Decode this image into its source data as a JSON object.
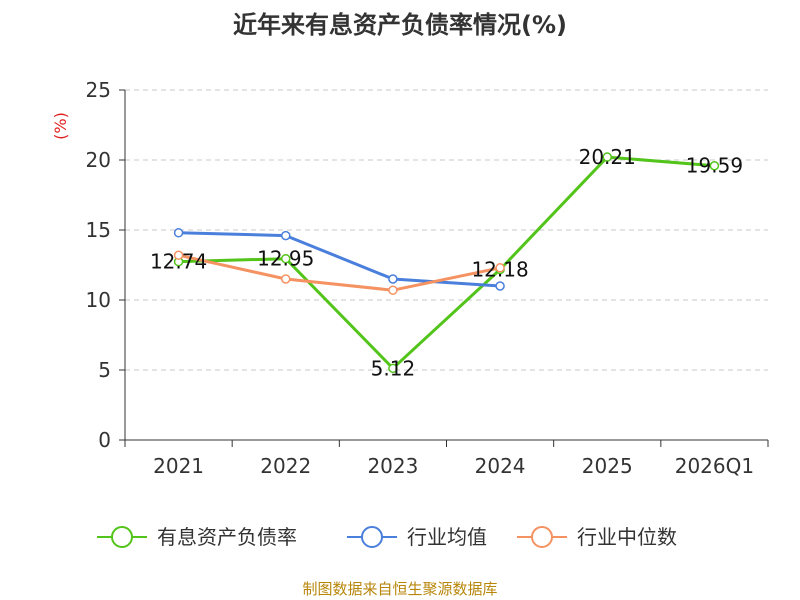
{
  "chart_data": {
    "type": "line",
    "title": "近年来有息资产负债率情况(%)",
    "ylabel": "(%)",
    "xlabel": "",
    "ylim": [
      0,
      25
    ],
    "yticks": [
      0,
      5,
      10,
      15,
      20,
      25
    ],
    "grid": true,
    "legend_position": "bottom",
    "categories": [
      "2021",
      "2022",
      "2023",
      "2024",
      "2025",
      "2026Q1"
    ],
    "series": [
      {
        "name": "有息资产负债率",
        "color": "#52c41a",
        "values": [
          12.74,
          12.95,
          5.12,
          12.18,
          20.21,
          19.59
        ],
        "labels": [
          "12.74",
          "12.95",
          "5.12",
          "12.18",
          "20.21",
          "19.59"
        ]
      },
      {
        "name": "行业均值",
        "color": "#4a7fdc",
        "values": [
          14.8,
          14.6,
          11.5,
          11.0,
          null,
          null
        ]
      },
      {
        "name": "行业中位数",
        "color": "#f59262",
        "values": [
          13.2,
          11.5,
          10.7,
          12.3,
          null,
          null
        ]
      }
    ]
  },
  "footer": {
    "source": "制图数据来自恒生聚源数据库"
  }
}
